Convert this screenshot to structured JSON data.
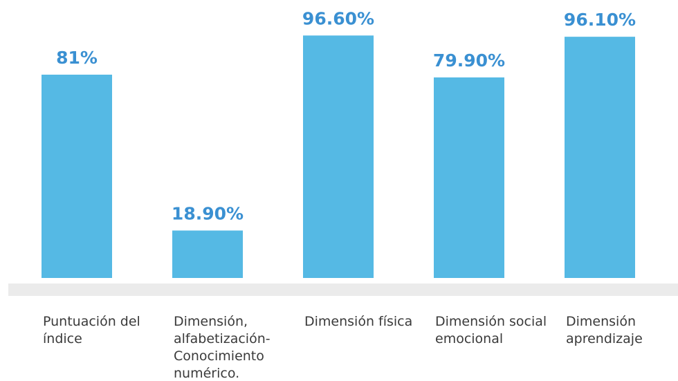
{
  "chart_data": {
    "type": "bar",
    "categories": [
      "Puntuación del índice",
      "Dimensión, alfabetización-Conocimiento numérico.",
      "Dimensión física",
      "Dimensión social emocional",
      "Dimensión aprendizaje"
    ],
    "values": [
      81,
      18.9,
      96.6,
      79.9,
      96.1
    ],
    "value_labels": [
      "81%",
      "18.90%",
      "96.60%",
      "79.90%",
      "96.10%"
    ],
    "color": "#55b9e4",
    "ylim": [
      0,
      100
    ]
  }
}
